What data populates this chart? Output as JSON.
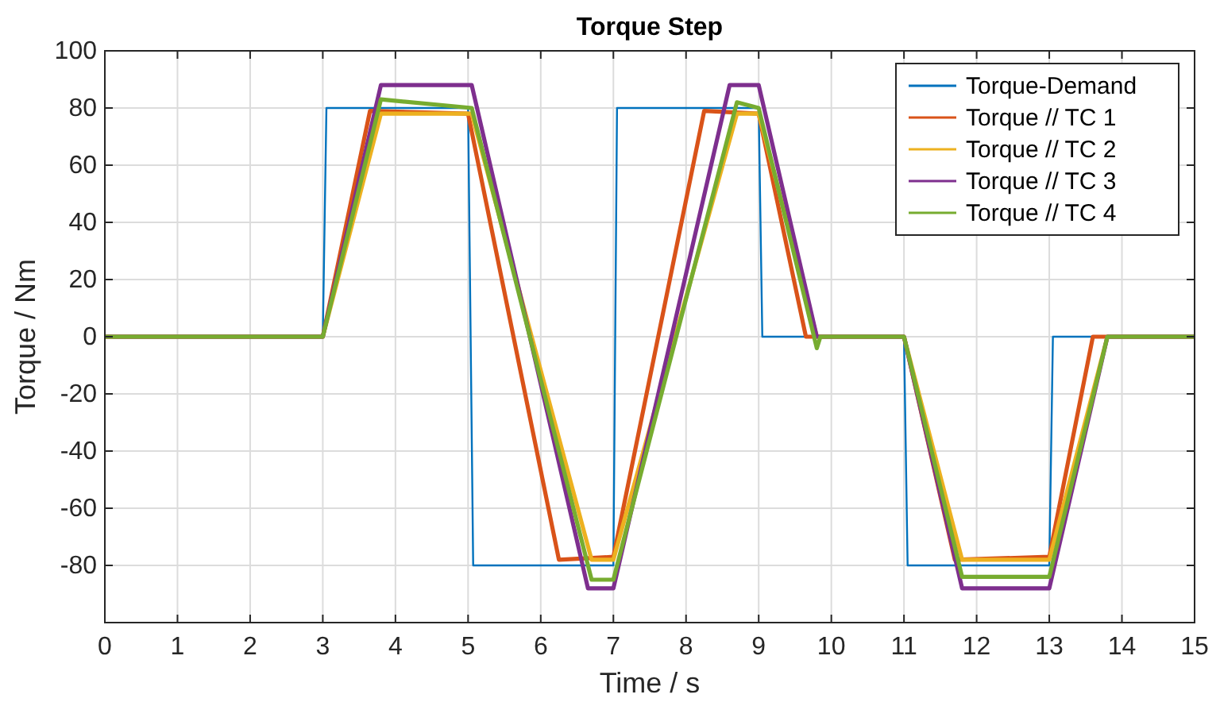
{
  "chart_data": {
    "type": "line",
    "title": "Torque Step",
    "xlabel": "Time / s",
    "ylabel": "Torque / Nm",
    "xlim": [
      0,
      15
    ],
    "xticks": [
      0,
      1,
      2,
      3,
      4,
      5,
      6,
      7,
      8,
      9,
      10,
      11,
      12,
      13,
      14,
      15
    ],
    "ylim": [
      -100,
      100
    ],
    "yticks": [
      {
        "value": -100,
        "label": null
      },
      -80,
      -60,
      -40,
      -20,
      0,
      20,
      40,
      60,
      80,
      100
    ],
    "grid": true,
    "legend": "top right",
    "line_style": "solid",
    "marker": "none",
    "series": [
      {
        "name": "Torque-Demand",
        "color": "#0072bd",
        "x": [
          0,
          3,
          3.05,
          5,
          5.07,
          7,
          7.05,
          9,
          9.05,
          11,
          11.05,
          13,
          13.05,
          15
        ],
        "values": [
          0,
          0,
          80,
          80,
          -80,
          -80,
          80,
          80,
          0,
          0,
          -80,
          -80,
          0,
          0
        ]
      },
      {
        "name": "Torque // TC 1",
        "color": "#d95319",
        "x": [
          0,
          3,
          3.65,
          5,
          6.25,
          7,
          8.25,
          9,
          9.65,
          11,
          11.7,
          13,
          13.6,
          15
        ],
        "values": [
          0,
          0,
          79,
          78,
          -78,
          -77,
          79,
          78,
          0,
          0,
          -78,
          -77,
          0,
          0
        ]
      },
      {
        "name": "Torque // TC 2",
        "color": "#edb120",
        "x": [
          0,
          3,
          3.8,
          5.05,
          6.7,
          7,
          8.7,
          9,
          9.8,
          11,
          11.8,
          13,
          13.8,
          15
        ],
        "values": [
          0,
          0,
          78,
          78,
          -78,
          -78,
          78,
          78,
          0,
          0,
          -78,
          -78,
          0,
          0
        ]
      },
      {
        "name": "Torque // TC 3",
        "color": "#7e2f8e",
        "x": [
          0,
          3,
          3.8,
          5.05,
          6.65,
          7,
          8.6,
          9,
          9.8,
          11,
          11.8,
          13,
          13.8,
          15
        ],
        "values": [
          0,
          0,
          88,
          88,
          -88,
          -88,
          88,
          88,
          0,
          0,
          -88,
          -88,
          0,
          0
        ]
      },
      {
        "name": "Torque // TC 4",
        "color": "#77ac30",
        "x": [
          0,
          3,
          3.8,
          5.05,
          6.7,
          7,
          8.7,
          9,
          9.8,
          9.85,
          10,
          11,
          11.8,
          13,
          13.8,
          15
        ],
        "values": [
          0,
          0,
          83,
          80,
          -85,
          -85,
          82,
          80,
          -4,
          0,
          0,
          0,
          -84,
          -84,
          0,
          0
        ]
      }
    ]
  }
}
